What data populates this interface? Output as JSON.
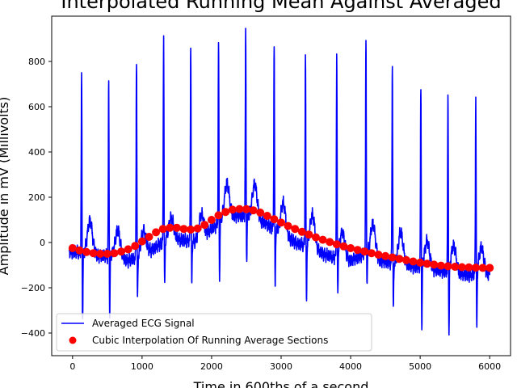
{
  "chart_data": {
    "type": "line",
    "title": "Interpolated Running Mean Against Averaged",
    "xlabel": "Time in 600ths of a second",
    "ylabel": "Amplitude in mV (Millivolts)",
    "xlim": [
      -300,
      6300
    ],
    "ylim": [
      -500,
      1000
    ],
    "xticks": [
      0,
      1000,
      2000,
      3000,
      4000,
      5000,
      6000
    ],
    "yticks": [
      -400,
      -200,
      0,
      200,
      400,
      600,
      800
    ],
    "legend_position": "lower left",
    "series": [
      {
        "name": "Averaged ECG Signal",
        "style": "line",
        "color": "#0000ff",
        "baseline": {
          "x": [
            0,
            200,
            400,
            600,
            800,
            1000,
            1200,
            1400,
            1600,
            1800,
            2000,
            2200,
            2400,
            2600,
            2800,
            3000,
            3200,
            3400,
            3600,
            3800,
            4000,
            4200,
            4400,
            4600,
            4800,
            5000,
            5200,
            5400,
            5600,
            5800,
            6000
          ],
          "y": [
            -40,
            -50,
            -60,
            -60,
            -80,
            -60,
            -20,
            20,
            10,
            0,
            60,
            110,
            120,
            110,
            80,
            40,
            0,
            -20,
            -50,
            -70,
            -80,
            -50,
            -80,
            -90,
            -100,
            -110,
            -120,
            -130,
            -140,
            -145,
            -140
          ]
        },
        "peaks": [
          {
            "x": 130,
            "max": 735,
            "min": -350
          },
          {
            "x": 520,
            "max": 700,
            "min": -330
          },
          {
            "x": 920,
            "max": 820,
            "min": -270
          },
          {
            "x": 1310,
            "max": 925,
            "min": -220
          },
          {
            "x": 1700,
            "max": 875,
            "min": -200
          },
          {
            "x": 2100,
            "max": 885,
            "min": -170
          },
          {
            "x": 2490,
            "max": 920,
            "min": -80
          },
          {
            "x": 2900,
            "max": 875,
            "min": -210
          },
          {
            "x": 3350,
            "max": 830,
            "min": -280
          },
          {
            "x": 3800,
            "max": 825,
            "min": -260
          },
          {
            "x": 4220,
            "max": 890,
            "min": -200
          },
          {
            "x": 4600,
            "max": 795,
            "min": -310
          },
          {
            "x": 5010,
            "max": 685,
            "min": -400
          },
          {
            "x": 5400,
            "max": 645,
            "min": -440
          },
          {
            "x": 5800,
            "max": 640,
            "min": -420
          }
        ],
        "t_waves": [
          {
            "x": 250,
            "amp": 150
          },
          {
            "x": 650,
            "amp": 120
          },
          {
            "x": 1020,
            "amp": 110
          },
          {
            "x": 1420,
            "amp": 90
          },
          {
            "x": 1850,
            "amp": 110
          },
          {
            "x": 2220,
            "amp": 150
          },
          {
            "x": 2620,
            "amp": 150
          },
          {
            "x": 3030,
            "amp": 140
          },
          {
            "x": 3450,
            "amp": 150
          },
          {
            "x": 3880,
            "amp": 120
          },
          {
            "x": 4320,
            "amp": 150
          },
          {
            "x": 4720,
            "amp": 140
          },
          {
            "x": 5100,
            "amp": 120
          },
          {
            "x": 5480,
            "amp": 120
          },
          {
            "x": 5880,
            "amp": 120
          }
        ]
      },
      {
        "name": "Cubic Interpolation Of Running Average Sections",
        "style": "markers",
        "color": "#ff0000",
        "x": [
          0,
          100,
          200,
          300,
          400,
          500,
          600,
          700,
          800,
          900,
          1000,
          1100,
          1200,
          1300,
          1400,
          1500,
          1600,
          1700,
          1800,
          1900,
          2000,
          2100,
          2200,
          2300,
          2400,
          2500,
          2600,
          2700,
          2800,
          2900,
          3000,
          3100,
          3200,
          3300,
          3400,
          3500,
          3600,
          3700,
          3800,
          3900,
          4000,
          4100,
          4200,
          4300,
          4400,
          4500,
          4600,
          4700,
          4800,
          4900,
          5000,
          5100,
          5200,
          5300,
          5400,
          5500,
          5600,
          5700,
          5800,
          5900,
          6000
        ],
        "y": [
          -25,
          -35,
          -42,
          -47,
          -50,
          -50,
          -47,
          -40,
          -30,
          -15,
          5,
          25,
          45,
          60,
          65,
          65,
          60,
          57,
          62,
          78,
          100,
          120,
          135,
          145,
          148,
          147,
          142,
          132,
          118,
          103,
          88,
          73,
          60,
          47,
          35,
          23,
          12,
          2,
          -8,
          -17,
          -25,
          -33,
          -40,
          -47,
          -54,
          -60,
          -66,
          -72,
          -78,
          -84,
          -89,
          -94,
          -98,
          -102,
          -105,
          -107,
          -109,
          -110,
          -111,
          -112,
          -112
        ]
      }
    ]
  }
}
